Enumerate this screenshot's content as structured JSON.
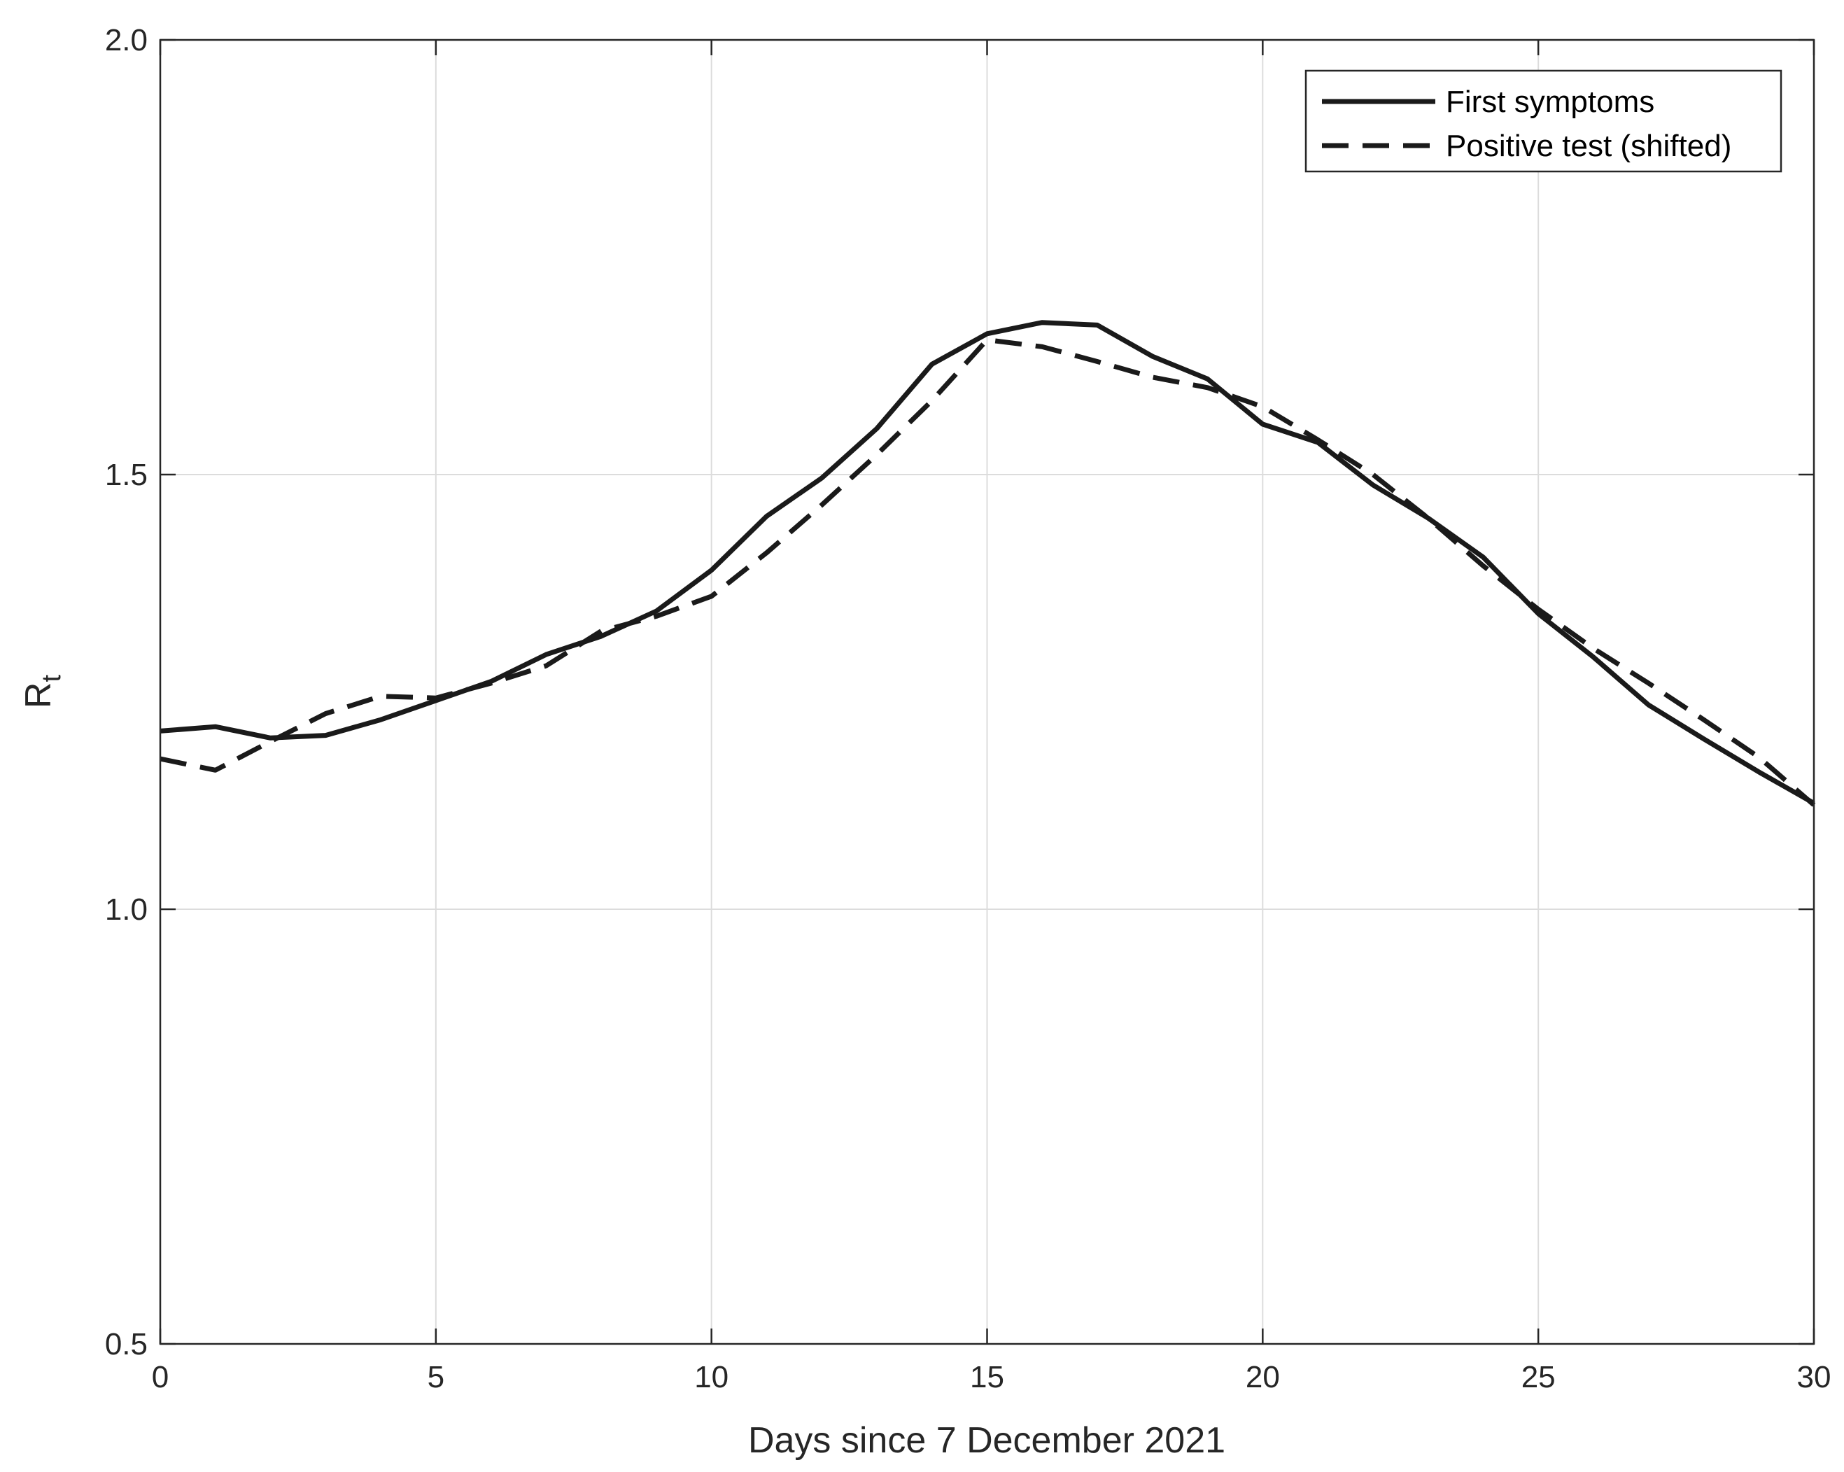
{
  "chart_data": {
    "type": "line",
    "title": "",
    "xlabel": "Days since 7 December 2021",
    "ylabel": "R",
    "ylabel_subscript": "t",
    "xlim": [
      0,
      30
    ],
    "ylim": [
      0.5,
      2.0
    ],
    "xticks": [
      0,
      5,
      10,
      15,
      20,
      25,
      30
    ],
    "yticks": [
      0.5,
      1.0,
      1.5,
      2.0
    ],
    "xtick_labels": [
      "0",
      "5",
      "10",
      "15",
      "20",
      "25",
      "30"
    ],
    "ytick_labels": [
      "0.5",
      "1.0",
      "1.5",
      "2.0"
    ],
    "grid": true,
    "legend_position": "top-right",
    "series": [
      {
        "name": "First symptoms",
        "style": "solid",
        "color": "#1a1a1a",
        "x": [
          0,
          1,
          2,
          3,
          4,
          5,
          6,
          7,
          8,
          9,
          10,
          11,
          12,
          13,
          14,
          15,
          16,
          17,
          18,
          19,
          20,
          21,
          22,
          23,
          24,
          25,
          26,
          27,
          28,
          29,
          30
        ],
        "y": [
          1.205,
          1.21,
          1.197,
          1.2,
          1.218,
          1.24,
          1.262,
          1.293,
          1.314,
          1.343,
          1.39,
          1.452,
          1.496,
          1.553,
          1.627,
          1.662,
          1.675,
          1.672,
          1.636,
          1.61,
          1.558,
          1.537,
          1.488,
          1.45,
          1.405,
          1.34,
          1.29,
          1.235,
          1.196,
          1.158,
          1.122
        ]
      },
      {
        "name": "Positive test (shifted)",
        "style": "dashed",
        "color": "#1a1a1a",
        "x": [
          0,
          1,
          2,
          3,
          4,
          5,
          6,
          7,
          8,
          9,
          10,
          11,
          12,
          13,
          14,
          15,
          16,
          17,
          18,
          19,
          20,
          21,
          22,
          23,
          24,
          25,
          26,
          27,
          28,
          29,
          30
        ],
        "y": [
          1.173,
          1.16,
          1.193,
          1.225,
          1.245,
          1.243,
          1.26,
          1.28,
          1.32,
          1.337,
          1.36,
          1.41,
          1.465,
          1.523,
          1.585,
          1.655,
          1.647,
          1.63,
          1.612,
          1.6,
          1.578,
          1.54,
          1.5,
          1.45,
          1.395,
          1.345,
          1.3,
          1.26,
          1.218,
          1.175,
          1.12
        ]
      }
    ]
  }
}
